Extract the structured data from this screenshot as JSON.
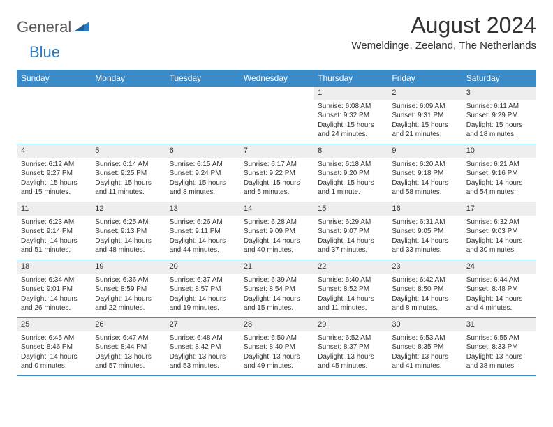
{
  "logo": {
    "text_general": "General",
    "text_blue": "Blue"
  },
  "title": "August 2024",
  "location": "Wemeldinge, Zeeland, The Netherlands",
  "colors": {
    "header_bg": "#3b8bc9",
    "header_text": "#ffffff",
    "daynum_bg": "#eeeeee",
    "text": "#333333",
    "row_border": "#3b8bc9",
    "logo_gray": "#5a5a5a",
    "logo_blue": "#2b7bbf",
    "page_bg": "#ffffff"
  },
  "weekdays": [
    "Sunday",
    "Monday",
    "Tuesday",
    "Wednesday",
    "Thursday",
    "Friday",
    "Saturday"
  ],
  "weeks": [
    [
      {
        "empty": true
      },
      {
        "empty": true
      },
      {
        "empty": true
      },
      {
        "empty": true
      },
      {
        "n": "1",
        "sunrise": "Sunrise: 6:08 AM",
        "sunset": "Sunset: 9:32 PM",
        "daylight": "Daylight: 15 hours and 24 minutes."
      },
      {
        "n": "2",
        "sunrise": "Sunrise: 6:09 AM",
        "sunset": "Sunset: 9:31 PM",
        "daylight": "Daylight: 15 hours and 21 minutes."
      },
      {
        "n": "3",
        "sunrise": "Sunrise: 6:11 AM",
        "sunset": "Sunset: 9:29 PM",
        "daylight": "Daylight: 15 hours and 18 minutes."
      }
    ],
    [
      {
        "n": "4",
        "sunrise": "Sunrise: 6:12 AM",
        "sunset": "Sunset: 9:27 PM",
        "daylight": "Daylight: 15 hours and 15 minutes."
      },
      {
        "n": "5",
        "sunrise": "Sunrise: 6:14 AM",
        "sunset": "Sunset: 9:25 PM",
        "daylight": "Daylight: 15 hours and 11 minutes."
      },
      {
        "n": "6",
        "sunrise": "Sunrise: 6:15 AM",
        "sunset": "Sunset: 9:24 PM",
        "daylight": "Daylight: 15 hours and 8 minutes."
      },
      {
        "n": "7",
        "sunrise": "Sunrise: 6:17 AM",
        "sunset": "Sunset: 9:22 PM",
        "daylight": "Daylight: 15 hours and 5 minutes."
      },
      {
        "n": "8",
        "sunrise": "Sunrise: 6:18 AM",
        "sunset": "Sunset: 9:20 PM",
        "daylight": "Daylight: 15 hours and 1 minute."
      },
      {
        "n": "9",
        "sunrise": "Sunrise: 6:20 AM",
        "sunset": "Sunset: 9:18 PM",
        "daylight": "Daylight: 14 hours and 58 minutes."
      },
      {
        "n": "10",
        "sunrise": "Sunrise: 6:21 AM",
        "sunset": "Sunset: 9:16 PM",
        "daylight": "Daylight: 14 hours and 54 minutes."
      }
    ],
    [
      {
        "n": "11",
        "sunrise": "Sunrise: 6:23 AM",
        "sunset": "Sunset: 9:14 PM",
        "daylight": "Daylight: 14 hours and 51 minutes."
      },
      {
        "n": "12",
        "sunrise": "Sunrise: 6:25 AM",
        "sunset": "Sunset: 9:13 PM",
        "daylight": "Daylight: 14 hours and 48 minutes."
      },
      {
        "n": "13",
        "sunrise": "Sunrise: 6:26 AM",
        "sunset": "Sunset: 9:11 PM",
        "daylight": "Daylight: 14 hours and 44 minutes."
      },
      {
        "n": "14",
        "sunrise": "Sunrise: 6:28 AM",
        "sunset": "Sunset: 9:09 PM",
        "daylight": "Daylight: 14 hours and 40 minutes."
      },
      {
        "n": "15",
        "sunrise": "Sunrise: 6:29 AM",
        "sunset": "Sunset: 9:07 PM",
        "daylight": "Daylight: 14 hours and 37 minutes."
      },
      {
        "n": "16",
        "sunrise": "Sunrise: 6:31 AM",
        "sunset": "Sunset: 9:05 PM",
        "daylight": "Daylight: 14 hours and 33 minutes."
      },
      {
        "n": "17",
        "sunrise": "Sunrise: 6:32 AM",
        "sunset": "Sunset: 9:03 PM",
        "daylight": "Daylight: 14 hours and 30 minutes."
      }
    ],
    [
      {
        "n": "18",
        "sunrise": "Sunrise: 6:34 AM",
        "sunset": "Sunset: 9:01 PM",
        "daylight": "Daylight: 14 hours and 26 minutes."
      },
      {
        "n": "19",
        "sunrise": "Sunrise: 6:36 AM",
        "sunset": "Sunset: 8:59 PM",
        "daylight": "Daylight: 14 hours and 22 minutes."
      },
      {
        "n": "20",
        "sunrise": "Sunrise: 6:37 AM",
        "sunset": "Sunset: 8:57 PM",
        "daylight": "Daylight: 14 hours and 19 minutes."
      },
      {
        "n": "21",
        "sunrise": "Sunrise: 6:39 AM",
        "sunset": "Sunset: 8:54 PM",
        "daylight": "Daylight: 14 hours and 15 minutes."
      },
      {
        "n": "22",
        "sunrise": "Sunrise: 6:40 AM",
        "sunset": "Sunset: 8:52 PM",
        "daylight": "Daylight: 14 hours and 11 minutes."
      },
      {
        "n": "23",
        "sunrise": "Sunrise: 6:42 AM",
        "sunset": "Sunset: 8:50 PM",
        "daylight": "Daylight: 14 hours and 8 minutes."
      },
      {
        "n": "24",
        "sunrise": "Sunrise: 6:44 AM",
        "sunset": "Sunset: 8:48 PM",
        "daylight": "Daylight: 14 hours and 4 minutes."
      }
    ],
    [
      {
        "n": "25",
        "sunrise": "Sunrise: 6:45 AM",
        "sunset": "Sunset: 8:46 PM",
        "daylight": "Daylight: 14 hours and 0 minutes."
      },
      {
        "n": "26",
        "sunrise": "Sunrise: 6:47 AM",
        "sunset": "Sunset: 8:44 PM",
        "daylight": "Daylight: 13 hours and 57 minutes."
      },
      {
        "n": "27",
        "sunrise": "Sunrise: 6:48 AM",
        "sunset": "Sunset: 8:42 PM",
        "daylight": "Daylight: 13 hours and 53 minutes."
      },
      {
        "n": "28",
        "sunrise": "Sunrise: 6:50 AM",
        "sunset": "Sunset: 8:40 PM",
        "daylight": "Daylight: 13 hours and 49 minutes."
      },
      {
        "n": "29",
        "sunrise": "Sunrise: 6:52 AM",
        "sunset": "Sunset: 8:37 PM",
        "daylight": "Daylight: 13 hours and 45 minutes."
      },
      {
        "n": "30",
        "sunrise": "Sunrise: 6:53 AM",
        "sunset": "Sunset: 8:35 PM",
        "daylight": "Daylight: 13 hours and 41 minutes."
      },
      {
        "n": "31",
        "sunrise": "Sunrise: 6:55 AM",
        "sunset": "Sunset: 8:33 PM",
        "daylight": "Daylight: 13 hours and 38 minutes."
      }
    ]
  ]
}
